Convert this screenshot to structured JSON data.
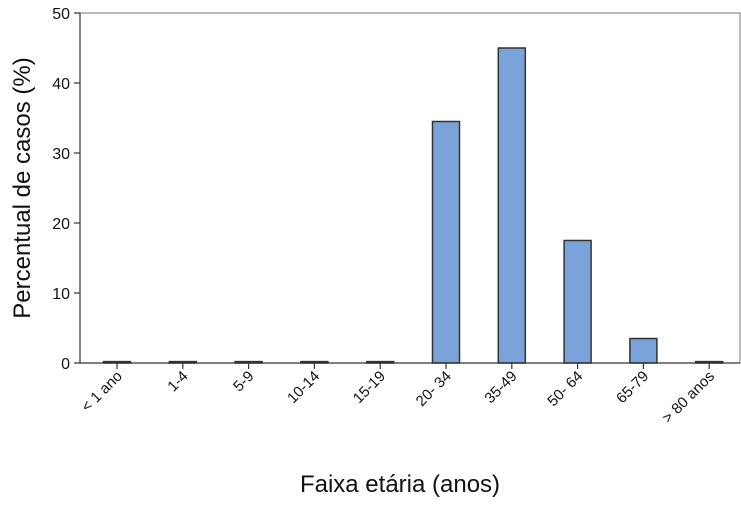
{
  "chart_data": {
    "type": "bar",
    "title": "",
    "xlabel": "Faixa etária (anos)",
    "ylabel": "Percentual de casos (%)",
    "categories": [
      "< 1 ano",
      "1-4",
      "5-9",
      "10-14",
      "15-19",
      "20- 34",
      "35-49",
      "50- 64",
      "65-79",
      "> 80 anos"
    ],
    "values": [
      0.2,
      0.2,
      0.2,
      0.2,
      0.2,
      34.5,
      45,
      17.5,
      3.5,
      0.2
    ],
    "ylim": [
      0,
      50
    ],
    "yticks": [
      0,
      10,
      20,
      30,
      40,
      50
    ],
    "grid": false,
    "bar_color": "#7aa3d9",
    "bar_edge_color": "#333333"
  }
}
